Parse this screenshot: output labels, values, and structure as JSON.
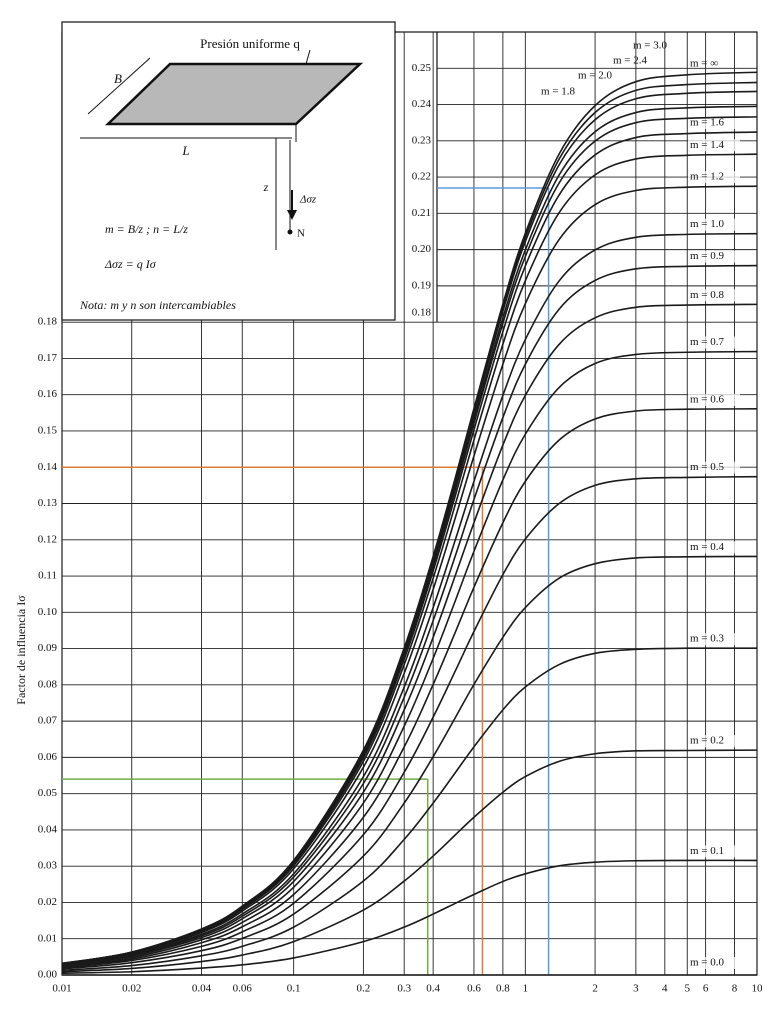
{
  "chart_data": {
    "type": "line",
    "y_label": "Factor de influencia Iσ",
    "annotations": [
      "Presión uniforme q",
      "B",
      "L",
      "z",
      "Δσz",
      "N",
      "m = B/z ; n = L/z",
      "Δσz = q Iσ",
      "Nota: m y n son intercambiables"
    ],
    "x": [
      0.01,
      0.02,
      0.04,
      0.06,
      0.1,
      0.2,
      0.3,
      0.4,
      0.5,
      0.6,
      0.8,
      1.0,
      1.4,
      2.0,
      3.0,
      5.0,
      10.0
    ],
    "color": "#1a1a1a",
    "series": [
      {
        "name": "m = 0.0",
        "values": [
          0,
          0,
          0,
          0,
          0,
          0,
          0,
          0,
          0,
          0,
          0,
          0,
          0,
          0,
          0,
          0,
          0
        ]
      },
      {
        "name": "m = 0.1",
        "values": [
          0.0005,
          0.0009,
          0.0019,
          0.0028,
          0.0047,
          0.0092,
          0.0132,
          0.0168,
          0.0198,
          0.0222,
          0.0258,
          0.0279,
          0.0301,
          0.0311,
          0.0315,
          0.0316,
          0.0316
        ]
      },
      {
        "name": "m = 0.2",
        "values": [
          0.0009,
          0.0018,
          0.0037,
          0.0055,
          0.0092,
          0.0179,
          0.0259,
          0.0328,
          0.0387,
          0.0435,
          0.0504,
          0.0547,
          0.0589,
          0.061,
          0.0618,
          0.0619,
          0.062
        ]
      },
      {
        "name": "m = 0.3",
        "values": [
          0.0013,
          0.0026,
          0.0053,
          0.0079,
          0.0132,
          0.0259,
          0.0374,
          0.0474,
          0.0559,
          0.0629,
          0.0731,
          0.0794,
          0.0856,
          0.0887,
          0.0898,
          0.0901,
          0.0901
        ]
      },
      {
        "name": "m = 0.4",
        "values": [
          0.0017,
          0.0034,
          0.0067,
          0.0101,
          0.0168,
          0.0328,
          0.0474,
          0.0602,
          0.0711,
          0.0801,
          0.0931,
          0.1013,
          0.1094,
          0.1134,
          0.115,
          0.1153,
          0.1154
        ]
      },
      {
        "name": "m = 0.5",
        "values": [
          0.002,
          0.004,
          0.0079,
          0.0119,
          0.0198,
          0.0387,
          0.0559,
          0.0711,
          0.084,
          0.0947,
          0.1104,
          0.1202,
          0.13,
          0.135,
          0.1368,
          0.1372,
          0.1374
        ]
      },
      {
        "name": "m = 0.6",
        "values": [
          0.0022,
          0.0044,
          0.0089,
          0.0133,
          0.0222,
          0.0435,
          0.0629,
          0.0801,
          0.0947,
          0.1069,
          0.1247,
          0.1361,
          0.1475,
          0.1533,
          0.1555,
          0.156,
          0.1561
        ]
      },
      {
        "name": "m = 0.7",
        "values": [
          0.0024,
          0.0048,
          0.0097,
          0.0145,
          0.0242,
          0.0474,
          0.0686,
          0.0873,
          0.1034,
          0.1168,
          0.1365,
          0.1491,
          0.162,
          0.1686,
          0.1711,
          0.1717,
          0.1719
        ]
      },
      {
        "name": "m = 0.8",
        "values": [
          0.0026,
          0.0052,
          0.0103,
          0.0155,
          0.0258,
          0.0504,
          0.0731,
          0.0931,
          0.1104,
          0.1247,
          0.1461,
          0.1598,
          0.1739,
          0.1812,
          0.1841,
          0.1847,
          0.1849
        ]
      },
      {
        "name": "m = 0.9",
        "values": [
          0.0027,
          0.0054,
          0.0108,
          0.0162,
          0.027,
          0.0528,
          0.0766,
          0.0977,
          0.1158,
          0.1311,
          0.1537,
          0.1684,
          0.1836,
          0.1915,
          0.1947,
          0.1954,
          0.1956
        ]
      },
      {
        "name": "m = 1.0",
        "values": [
          0.0028,
          0.0056,
          0.0112,
          0.0168,
          0.0279,
          0.0547,
          0.0794,
          0.1013,
          0.1202,
          0.1361,
          0.1598,
          0.1752,
          0.1914,
          0.1999,
          0.2034,
          0.2042,
          0.2044
        ]
      },
      {
        "name": "m = 1.2",
        "values": [
          0.0029,
          0.0059,
          0.0117,
          0.0176,
          0.0293,
          0.0573,
          0.0832,
          0.1063,
          0.1263,
          0.1431,
          0.1684,
          0.1851,
          0.2028,
          0.2124,
          0.2163,
          0.2172,
          0.2175
        ]
      },
      {
        "name": "m = 1.4",
        "values": [
          0.003,
          0.006,
          0.012,
          0.0181,
          0.0301,
          0.0589,
          0.0856,
          0.1094,
          0.13,
          0.1475,
          0.1739,
          0.1914,
          0.2102,
          0.2206,
          0.225,
          0.226,
          0.2263
        ]
      },
      {
        "name": "m = 1.6",
        "values": [
          0.0031,
          0.0061,
          0.0122,
          0.0184,
          0.0306,
          0.0599,
          0.0871,
          0.1114,
          0.1324,
          0.1503,
          0.1774,
          0.1955,
          0.2151,
          0.2261,
          0.2309,
          0.232,
          0.2324
        ]
      },
      {
        "name": "m = 1.8",
        "values": [
          0.0031,
          0.0062,
          0.0124,
          0.0185,
          0.0309,
          0.0606,
          0.088,
          0.1126,
          0.134,
          0.1521,
          0.1797,
          0.1981,
          0.2184,
          0.2299,
          0.235,
          0.2362,
          0.2366
        ]
      },
      {
        "name": "m = 2.0",
        "values": [
          0.0031,
          0.0062,
          0.0124,
          0.0187,
          0.0311,
          0.061,
          0.0887,
          0.1134,
          0.135,
          0.1533,
          0.1812,
          0.1999,
          0.2206,
          0.2325,
          0.2378,
          0.2391,
          0.2395
        ]
      },
      {
        "name": "m = 2.4",
        "values": [
          0.0031,
          0.0063,
          0.0125,
          0.0188,
          0.0313,
          0.0615,
          0.0894,
          0.1144,
          0.1362,
          0.1547,
          0.183,
          0.2022,
          0.2234,
          0.2358,
          0.2416,
          0.2431,
          0.2436
        ]
      },
      {
        "name": "m = 3.0",
        "values": [
          0.0032,
          0.0063,
          0.0126,
          0.0189,
          0.0315,
          0.0618,
          0.0898,
          0.115,
          0.1368,
          0.1555,
          0.1841,
          0.2034,
          0.225,
          0.2378,
          0.2439,
          0.2455,
          0.2461
        ]
      },
      {
        "name": "m = ∞",
        "values": [
          0.0032,
          0.0063,
          0.0127,
          0.019,
          0.0316,
          0.062,
          0.0902,
          0.1154,
          0.1374,
          0.1562,
          0.185,
          0.2045,
          0.2264,
          0.2397,
          0.2463,
          0.2482,
          0.2489
        ]
      }
    ],
    "reference_lines": [
      {
        "color": "#5b9bd5",
        "x": 1.26,
        "y": 0.217
      },
      {
        "color": "#e07b39",
        "x": 0.653,
        "y": 0.14
      },
      {
        "color": "#70ad47",
        "x": 0.379,
        "y": 0.054
      }
    ],
    "log_x": true,
    "grid": true,
    "xlim": [
      0.01,
      10
    ],
    "xticks": [
      0.01,
      0.02,
      0.04,
      0.06,
      0.1,
      0.2,
      0.3,
      0.4,
      0.6,
      0.8,
      1,
      2,
      3,
      4,
      5,
      6,
      8,
      10
    ],
    "ylim": [
      0,
      0.26
    ],
    "yticks": [
      {
        "value": 0,
        "label": "0.00"
      },
      0.01,
      0.02,
      0.03,
      0.04,
      0.05,
      0.06,
      0.07,
      0.08,
      0.09,
      {
        "value": 0.1,
        "label": "0.10"
      },
      0.11,
      0.12,
      0.13,
      0.14,
      0.15,
      0.16,
      0.17,
      0.18,
      0.19,
      {
        "value": 0.2,
        "label": "0.20"
      },
      0.21,
      0.22,
      0.23,
      0.24,
      0.25
    ]
  }
}
